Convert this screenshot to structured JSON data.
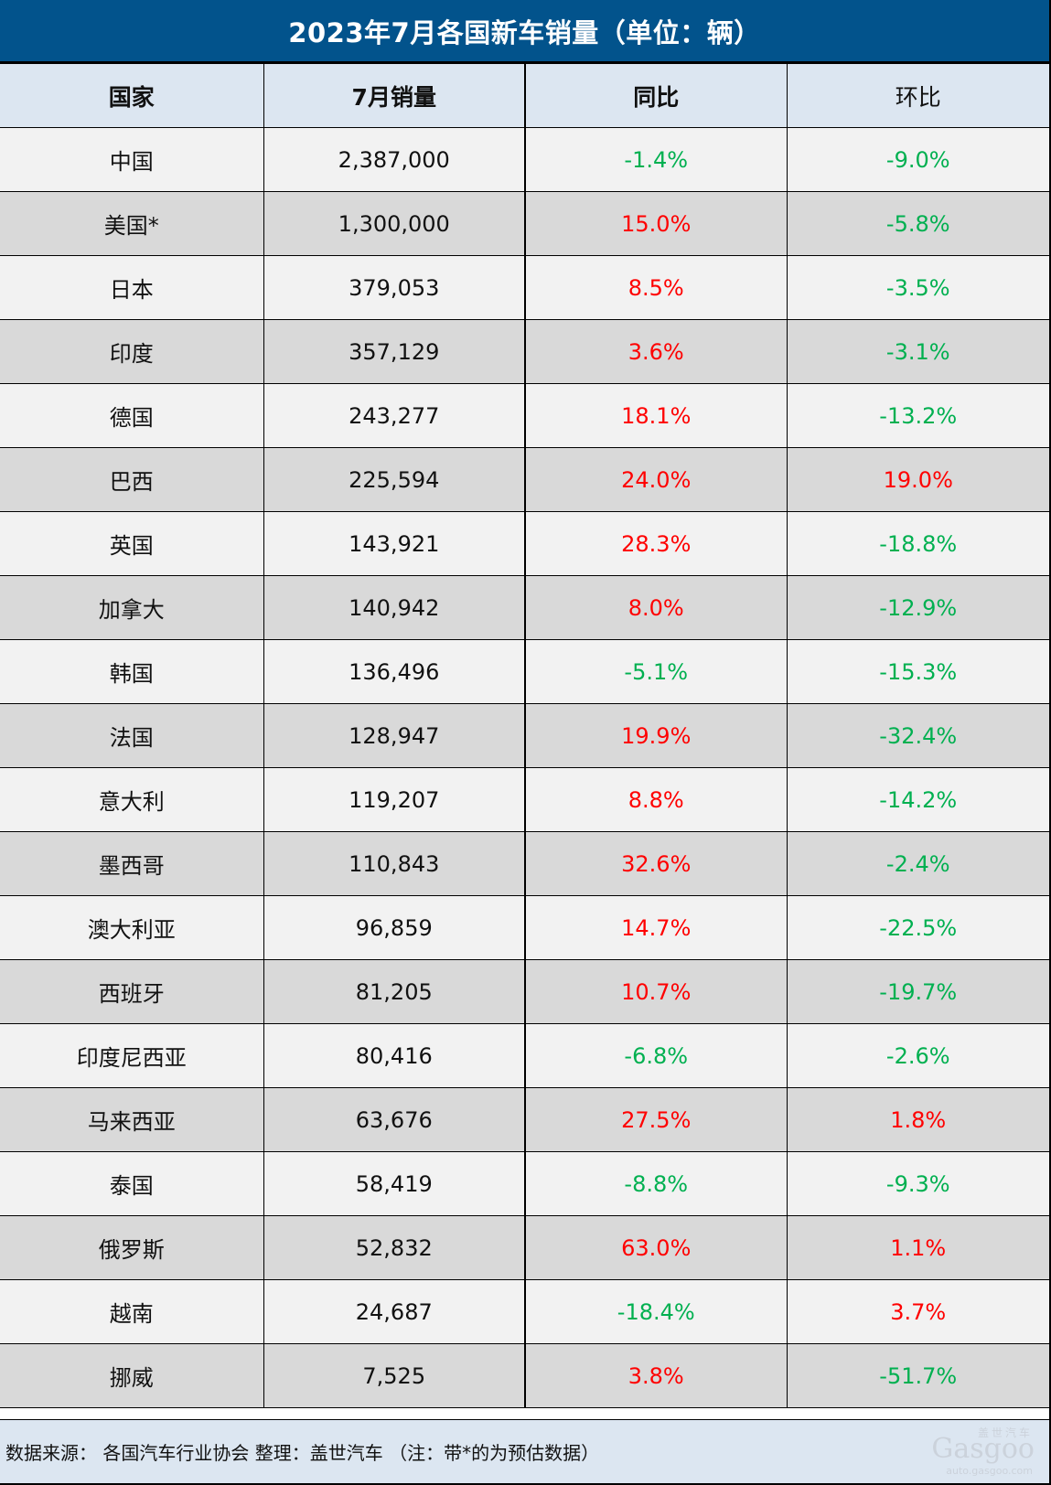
{
  "title": "2023年7月各国新车销量（单位：辆）",
  "headers": {
    "country": "国家",
    "sales": "7月销量",
    "yoy": "同比",
    "mom": "环比"
  },
  "colors": {
    "title_bg": "#02538c",
    "header_bg": "#dce6f1",
    "row_odd": "#f2f2f2",
    "row_even": "#d9d9d9",
    "positive": "#ff0000",
    "negative": "#00b050"
  },
  "rows": [
    {
      "country": "中国",
      "sales": "2,387,000",
      "yoy": "-1.4%",
      "mom": "-9.0%"
    },
    {
      "country": "美国*",
      "sales": "1,300,000",
      "yoy": "15.0%",
      "mom": "-5.8%"
    },
    {
      "country": "日本",
      "sales": "379,053",
      "yoy": "8.5%",
      "mom": "-3.5%"
    },
    {
      "country": "印度",
      "sales": "357,129",
      "yoy": "3.6%",
      "mom": "-3.1%"
    },
    {
      "country": "德国",
      "sales": "243,277",
      "yoy": "18.1%",
      "mom": "-13.2%"
    },
    {
      "country": "巴西",
      "sales": "225,594",
      "yoy": "24.0%",
      "mom": "19.0%"
    },
    {
      "country": "英国",
      "sales": "143,921",
      "yoy": "28.3%",
      "mom": "-18.8%"
    },
    {
      "country": "加拿大",
      "sales": "140,942",
      "yoy": "8.0%",
      "mom": "-12.9%"
    },
    {
      "country": "韩国",
      "sales": "136,496",
      "yoy": "-5.1%",
      "mom": "-15.3%"
    },
    {
      "country": "法国",
      "sales": "128,947",
      "yoy": "19.9%",
      "mom": "-32.4%"
    },
    {
      "country": "意大利",
      "sales": "119,207",
      "yoy": "8.8%",
      "mom": "-14.2%"
    },
    {
      "country": "墨西哥",
      "sales": "110,843",
      "yoy": "32.6%",
      "mom": "-2.4%"
    },
    {
      "country": "澳大利亚",
      "sales": "96,859",
      "yoy": "14.7%",
      "mom": "-22.5%"
    },
    {
      "country": "西班牙",
      "sales": "81,205",
      "yoy": "10.7%",
      "mom": "-19.7%"
    },
    {
      "country": "印度尼西亚",
      "sales": "80,416",
      "yoy": "-6.8%",
      "mom": "-2.6%"
    },
    {
      "country": "马来西亚",
      "sales": "63,676",
      "yoy": "27.5%",
      "mom": "1.8%"
    },
    {
      "country": "泰国",
      "sales": "58,419",
      "yoy": "-8.8%",
      "mom": "-9.3%"
    },
    {
      "country": "俄罗斯",
      "sales": "52,832",
      "yoy": "63.0%",
      "mom": "1.1%"
    },
    {
      "country": "越南",
      "sales": "24,687",
      "yoy": "-18.4%",
      "mom": "3.7%"
    },
    {
      "country": "挪威",
      "sales": "7,525",
      "yoy": "3.8%",
      "mom": "-51.7%"
    }
  ],
  "footer": {
    "note": "数据来源： 各国汽车行业协会 整理：盖世汽车  （注：带*的为预估数据）"
  },
  "watermark": {
    "cn": "盖世汽车",
    "logo": "Gasgoo",
    "url": "auto.gasgoo.com"
  }
}
